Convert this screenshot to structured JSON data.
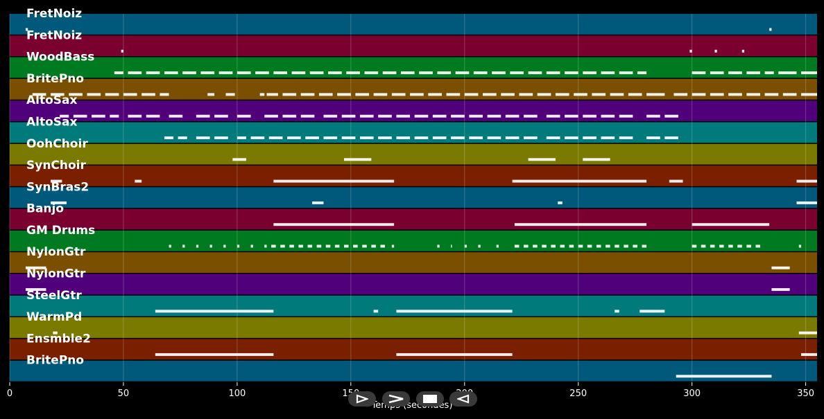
{
  "timeline": {
    "x_min": 0,
    "x_max": 355,
    "ticks": [
      0,
      50,
      100,
      150,
      200,
      250,
      300,
      350
    ],
    "xlabel": "Temps (secondes)"
  },
  "tracks": [
    {
      "name": "FretNoiz",
      "color": "#00587a",
      "notes": [
        [
          7,
          8
        ],
        [
          334,
          335
        ]
      ]
    },
    {
      "name": "FretNoiz",
      "color": "#7a0030",
      "notes": [
        [
          49,
          50
        ],
        [
          299,
          300
        ],
        [
          310,
          311
        ],
        [
          322,
          323
        ]
      ]
    },
    {
      "name": "WoodBass",
      "color": "#007a20",
      "notes": [
        [
          46,
          50
        ],
        [
          52,
          58
        ],
        [
          60,
          66
        ],
        [
          68,
          74
        ],
        [
          76,
          82
        ],
        [
          84,
          90
        ],
        [
          92,
          98
        ],
        [
          100,
          106
        ],
        [
          108,
          114
        ],
        [
          116,
          122
        ],
        [
          124,
          130
        ],
        [
          132,
          138
        ],
        [
          140,
          146
        ],
        [
          148,
          154
        ],
        [
          156,
          162
        ],
        [
          164,
          170
        ],
        [
          172,
          178
        ],
        [
          180,
          186
        ],
        [
          188,
          194
        ],
        [
          196,
          202
        ],
        [
          204,
          210
        ],
        [
          212,
          218
        ],
        [
          220,
          226
        ],
        [
          228,
          234
        ],
        [
          236,
          242
        ],
        [
          244,
          250
        ],
        [
          252,
          258
        ],
        [
          260,
          266
        ],
        [
          268,
          274
        ],
        [
          276,
          280
        ],
        [
          300,
          306
        ],
        [
          308,
          314
        ],
        [
          316,
          322
        ],
        [
          324,
          330
        ],
        [
          332,
          336
        ],
        [
          338,
          346
        ],
        [
          348,
          355
        ]
      ]
    },
    {
      "name": "BritePno",
      "color": "#7a5000",
      "notes": [
        [
          10,
          16
        ],
        [
          18,
          24
        ],
        [
          26,
          32
        ],
        [
          34,
          40
        ],
        [
          42,
          48
        ],
        [
          50,
          56
        ],
        [
          58,
          64
        ],
        [
          66,
          70
        ],
        [
          87,
          90
        ],
        [
          95,
          99
        ],
        [
          110,
          112
        ],
        [
          113,
          118
        ],
        [
          120,
          126
        ],
        [
          128,
          134
        ],
        [
          136,
          142
        ],
        [
          144,
          150
        ],
        [
          152,
          158
        ],
        [
          160,
          166
        ],
        [
          168,
          174
        ],
        [
          176,
          182
        ],
        [
          184,
          190
        ],
        [
          192,
          198
        ],
        [
          200,
          206
        ],
        [
          208,
          214
        ],
        [
          216,
          222
        ],
        [
          224,
          230
        ],
        [
          232,
          238
        ],
        [
          240,
          246
        ],
        [
          248,
          254
        ],
        [
          256,
          262
        ],
        [
          264,
          270
        ],
        [
          272,
          278
        ],
        [
          280,
          288
        ],
        [
          292,
          298
        ],
        [
          300,
          306
        ],
        [
          308,
          314
        ],
        [
          316,
          322
        ],
        [
          324,
          330
        ],
        [
          332,
          338
        ],
        [
          340,
          346
        ],
        [
          348,
          355
        ]
      ]
    },
    {
      "name": "AltoSax",
      "color": "#50007a",
      "notes": [
        [
          22,
          26
        ],
        [
          28,
          34
        ],
        [
          36,
          42
        ],
        [
          44,
          48
        ],
        [
          52,
          58
        ],
        [
          60,
          66
        ],
        [
          70,
          76
        ],
        [
          82,
          88
        ],
        [
          90,
          96
        ],
        [
          100,
          106
        ],
        [
          112,
          118
        ],
        [
          120,
          126
        ],
        [
          128,
          134
        ],
        [
          138,
          144
        ],
        [
          146,
          152
        ],
        [
          154,
          160
        ],
        [
          162,
          168
        ],
        [
          170,
          176
        ],
        [
          178,
          184
        ],
        [
          186,
          192
        ],
        [
          194,
          200
        ],
        [
          202,
          208
        ],
        [
          210,
          216
        ],
        [
          218,
          224
        ],
        [
          226,
          232
        ],
        [
          236,
          242
        ],
        [
          244,
          250
        ],
        [
          252,
          258
        ],
        [
          260,
          266
        ],
        [
          268,
          274
        ],
        [
          280,
          286
        ],
        [
          288,
          294
        ]
      ]
    },
    {
      "name": "AltoSax",
      "color": "#007a7a",
      "notes": [
        [
          68,
          72
        ],
        [
          74,
          78
        ],
        [
          82,
          88
        ],
        [
          90,
          96
        ],
        [
          100,
          104
        ],
        [
          106,
          112
        ],
        [
          114,
          120
        ],
        [
          122,
          128
        ],
        [
          130,
          136
        ],
        [
          138,
          144
        ],
        [
          146,
          152
        ],
        [
          154,
          160
        ],
        [
          162,
          168
        ],
        [
          170,
          176
        ],
        [
          178,
          184
        ],
        [
          186,
          192
        ],
        [
          194,
          200
        ],
        [
          202,
          208
        ],
        [
          210,
          216
        ],
        [
          218,
          224
        ],
        [
          226,
          232
        ],
        [
          236,
          242
        ],
        [
          244,
          250
        ],
        [
          252,
          258
        ],
        [
          260,
          266
        ],
        [
          268,
          274
        ],
        [
          280,
          286
        ],
        [
          288,
          294
        ]
      ]
    },
    {
      "name": "OohChoir",
      "color": "#7a7a00",
      "notes": [
        [
          98,
          104
        ],
        [
          147,
          159
        ],
        [
          228,
          240
        ],
        [
          252,
          264
        ]
      ]
    },
    {
      "name": "SynChoir",
      "color": "#7a2000",
      "notes": [
        [
          18,
          23
        ],
        [
          55,
          58
        ],
        [
          116,
          169
        ],
        [
          221,
          280
        ],
        [
          290,
          296
        ],
        [
          346,
          355
        ]
      ]
    },
    {
      "name": "SynBras2",
      "color": "#00587a",
      "notes": [
        [
          18,
          25
        ],
        [
          133,
          138
        ],
        [
          241,
          243
        ],
        [
          346,
          355
        ]
      ]
    },
    {
      "name": "Banjo",
      "color": "#7a0030",
      "notes": [
        [
          116,
          169
        ],
        [
          222,
          280
        ],
        [
          300,
          334
        ]
      ]
    },
    {
      "name": "GM Drums",
      "color": "#007a20",
      "notes": [
        [
          70,
          71
        ],
        [
          76,
          77
        ],
        [
          82,
          83
        ],
        [
          88,
          89
        ],
        [
          94,
          95
        ],
        [
          100,
          101
        ],
        [
          106,
          107
        ],
        [
          112,
          113
        ],
        [
          115,
          117
        ],
        [
          119,
          121
        ],
        [
          123,
          125
        ],
        [
          127,
          129
        ],
        [
          131,
          133
        ],
        [
          135,
          137
        ],
        [
          139,
          141
        ],
        [
          143,
          145
        ],
        [
          147,
          149
        ],
        [
          151,
          153
        ],
        [
          155,
          157
        ],
        [
          159,
          161
        ],
        [
          163,
          165
        ],
        [
          168,
          169
        ],
        [
          188,
          189
        ],
        [
          194,
          190
        ],
        [
          200,
          201
        ],
        [
          206,
          207
        ],
        [
          214,
          215
        ],
        [
          222,
          224
        ],
        [
          226,
          228
        ],
        [
          230,
          232
        ],
        [
          234,
          236
        ],
        [
          238,
          240
        ],
        [
          242,
          244
        ],
        [
          246,
          248
        ],
        [
          250,
          252
        ],
        [
          254,
          256
        ],
        [
          258,
          260
        ],
        [
          262,
          264
        ],
        [
          266,
          268
        ],
        [
          270,
          272
        ],
        [
          274,
          276
        ],
        [
          278,
          280
        ],
        [
          300,
          302
        ],
        [
          304,
          306
        ],
        [
          308,
          310
        ],
        [
          312,
          314
        ],
        [
          316,
          318
        ],
        [
          320,
          322
        ],
        [
          324,
          326
        ],
        [
          328,
          330
        ],
        [
          347,
          348
        ]
      ]
    },
    {
      "name": "NylonGtr",
      "color": "#7a5000",
      "notes": [
        [
          7,
          16
        ],
        [
          335,
          343
        ]
      ]
    },
    {
      "name": "NylonGtr",
      "color": "#50007a",
      "notes": [
        [
          7,
          16
        ],
        [
          335,
          343
        ]
      ]
    },
    {
      "name": "SteelGtr",
      "color": "#007a7a",
      "notes": [
        [
          64,
          116
        ],
        [
          160,
          162
        ],
        [
          170,
          221
        ],
        [
          266,
          268
        ],
        [
          277,
          288
        ]
      ]
    },
    {
      "name": "WarmPd",
      "color": "#7a7a00",
      "notes": [
        [
          19,
          21
        ],
        [
          347,
          355
        ]
      ]
    },
    {
      "name": "Ensmble2",
      "color": "#7a2000",
      "notes": [
        [
          64,
          116
        ],
        [
          170,
          221
        ],
        [
          348,
          355
        ]
      ]
    },
    {
      "name": "BritePno",
      "color": "#00587a",
      "notes": [
        [
          293,
          335
        ]
      ]
    }
  ],
  "controls": {
    "play": "play",
    "forward": "forward",
    "stop": "stop",
    "rewind": "rewind"
  }
}
